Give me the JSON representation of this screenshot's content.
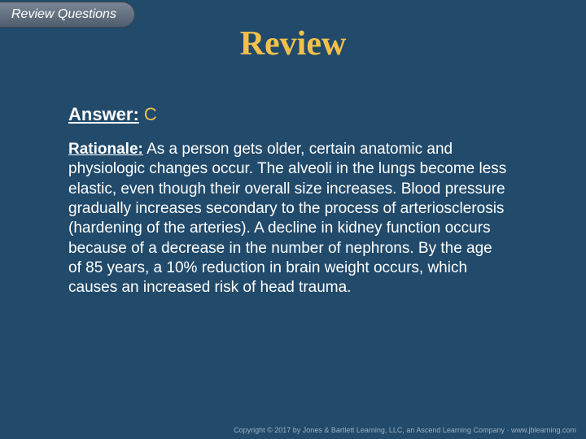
{
  "colors": {
    "background": "#214a6b",
    "accent": "#f4c04a",
    "text": "#ffffff",
    "tab_gradient_top": "#7a8694",
    "tab_gradient_bottom": "#4f5d6e",
    "footer": "#9fb0bf"
  },
  "tab": {
    "label": "Review Questions"
  },
  "title": "Review",
  "answer": {
    "label": "Answer:",
    "value": "C"
  },
  "rationale": {
    "label": "Rationale:",
    "text": "As a person gets older, certain anatomic and physiologic changes occur. The alveoli in the lungs become less elastic, even though their overall size increases. Blood pressure gradually increases secondary to the process of arteriosclerosis (hardening of the arteries). A decline in kidney function occurs because of a decrease in the number of nephrons. By the age of 85 years, a 10% reduction in brain weight occurs, which causes an increased risk of head trauma."
  },
  "footer": "Copyright © 2017 by Jones & Bartlett Learning, LLC, an Ascend Learning Company · www.jblearning.com"
}
